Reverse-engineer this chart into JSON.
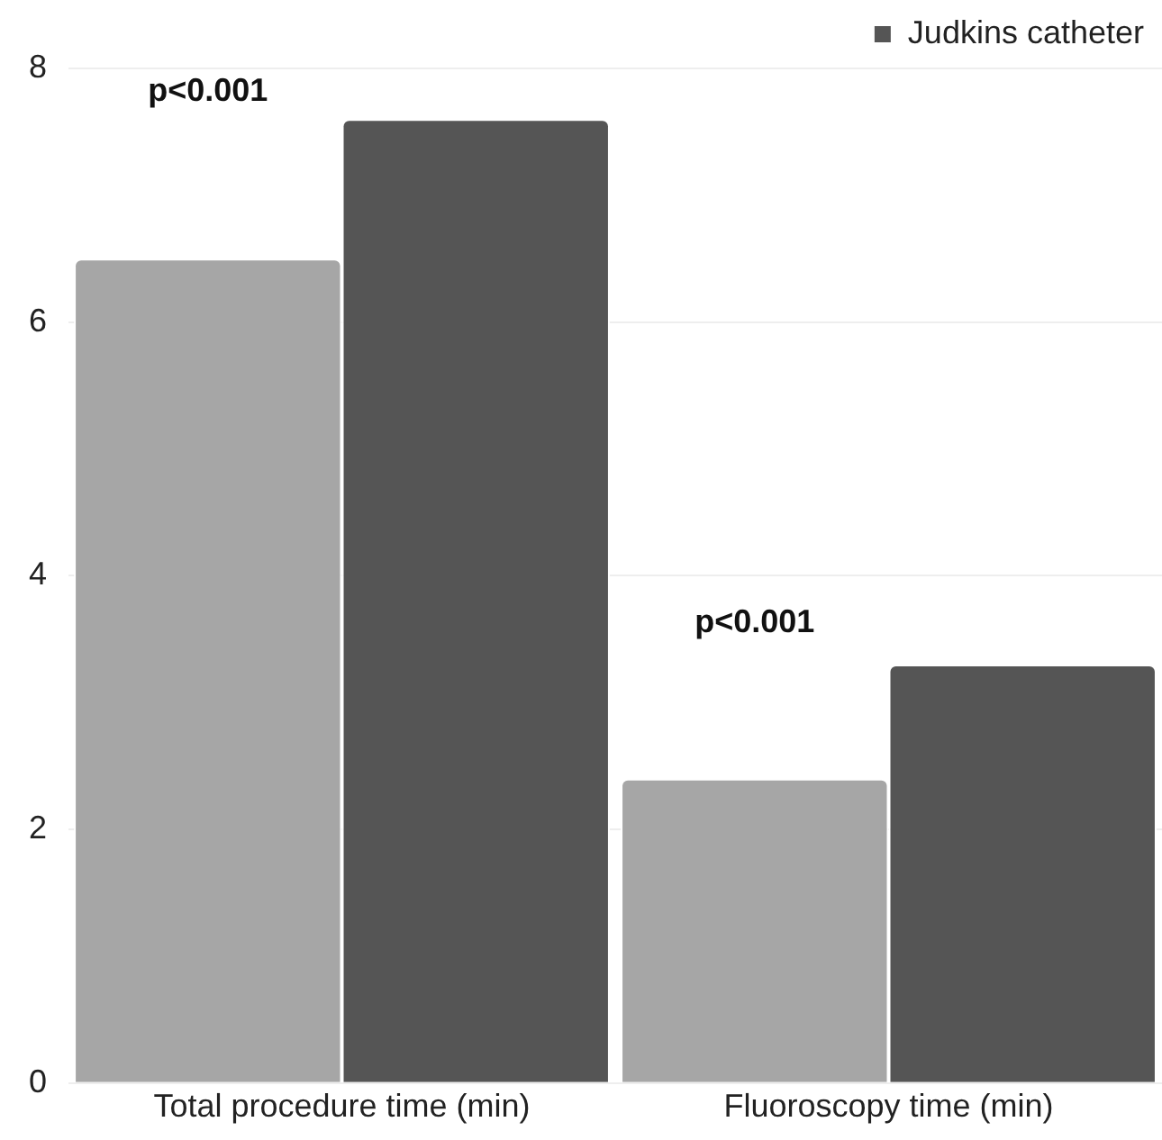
{
  "chart_data": {
    "type": "bar",
    "categories": [
      "Total procedure time (min)",
      "Fluoroscopy time (min)"
    ],
    "series": [
      {
        "color": "#a6a6a6",
        "values": [
          6.5,
          2.4
        ]
      },
      {
        "name": "Judkins catheter",
        "color": "#555555",
        "values": [
          7.6,
          3.3
        ]
      }
    ],
    "ylim": [
      0,
      8
    ],
    "yticks": [
      0,
      2,
      4,
      6,
      8
    ],
    "grid": "y",
    "legend": "top",
    "annotations": [
      "p<0.001",
      "p<0.001"
    ]
  }
}
